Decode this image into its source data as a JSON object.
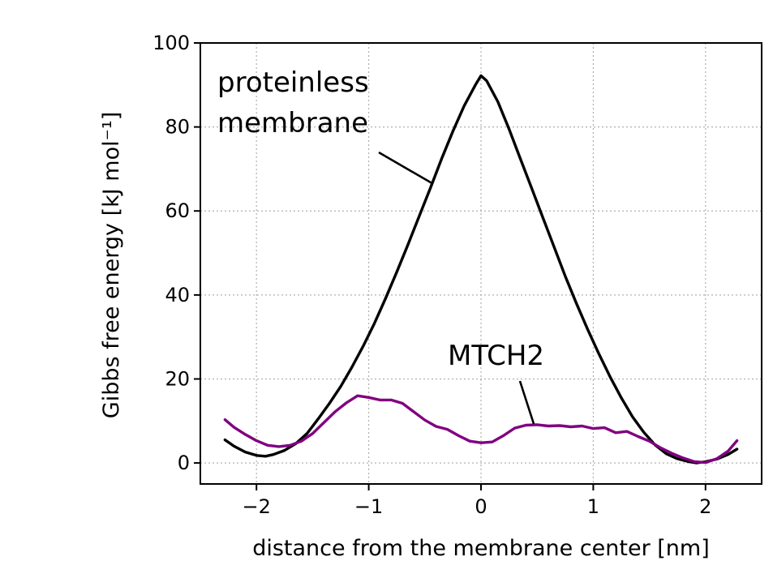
{
  "chart_data": {
    "type": "line",
    "xlabel": "distance from the membrane center [nm]",
    "ylabel": "Gibbs free energy [kJ mol⁻¹]",
    "xlim": [
      -2.5,
      2.5
    ],
    "ylim": [
      -5,
      100
    ],
    "xticks": [
      -2,
      -1,
      0,
      1,
      2
    ],
    "xtick_labels": [
      "−2",
      "−1",
      "0",
      "1",
      "2"
    ],
    "yticks": [
      0,
      20,
      40,
      60,
      80,
      100
    ],
    "ytick_labels": [
      "0",
      "20",
      "40",
      "60",
      "80",
      "100"
    ],
    "grid": true,
    "series": [
      {
        "name": "proteinless membrane",
        "color": "#000000",
        "x": [
          -2.28,
          -2.2,
          -2.1,
          -2.0,
          -1.92,
          -1.85,
          -1.75,
          -1.65,
          -1.55,
          -1.45,
          -1.35,
          -1.25,
          -1.15,
          -1.05,
          -0.95,
          -0.85,
          -0.75,
          -0.65,
          -0.55,
          -0.45,
          -0.35,
          -0.25,
          -0.15,
          -0.05,
          0.0,
          0.05,
          0.15,
          0.25,
          0.35,
          0.45,
          0.55,
          0.65,
          0.75,
          0.85,
          0.95,
          1.05,
          1.15,
          1.25,
          1.35,
          1.45,
          1.55,
          1.65,
          1.75,
          1.85,
          1.92,
          2.0,
          2.1,
          2.2,
          2.28
        ],
        "y": [
          5.5,
          4.0,
          2.6,
          1.8,
          1.6,
          2.0,
          3.0,
          4.6,
          7.0,
          10.5,
          14.2,
          18.2,
          22.8,
          27.8,
          33.2,
          39.2,
          45.5,
          52.0,
          58.8,
          65.5,
          72.5,
          79.0,
          85.0,
          90.0,
          92.2,
          91.0,
          86.0,
          79.5,
          72.5,
          65.5,
          58.5,
          51.5,
          44.5,
          38.0,
          31.8,
          26.0,
          20.5,
          15.5,
          11.0,
          7.3,
          4.3,
          2.2,
          1.0,
          0.3,
          0.0,
          0.3,
          0.9,
          2.0,
          3.3
        ]
      },
      {
        "name": "MTCH2",
        "color": "#800080",
        "x": [
          -2.28,
          -2.2,
          -2.1,
          -2.0,
          -1.9,
          -1.8,
          -1.7,
          -1.6,
          -1.5,
          -1.4,
          -1.3,
          -1.2,
          -1.1,
          -1.0,
          -0.9,
          -0.8,
          -0.7,
          -0.6,
          -0.5,
          -0.4,
          -0.3,
          -0.2,
          -0.1,
          0.0,
          0.1,
          0.2,
          0.3,
          0.4,
          0.5,
          0.6,
          0.7,
          0.8,
          0.9,
          1.0,
          1.1,
          1.2,
          1.3,
          1.4,
          1.5,
          1.6,
          1.7,
          1.8,
          1.9,
          2.0,
          2.1,
          2.2,
          2.28
        ],
        "y": [
          10.3,
          8.5,
          6.8,
          5.3,
          4.2,
          3.9,
          4.2,
          5.2,
          7.0,
          9.6,
          12.2,
          14.3,
          16.0,
          15.6,
          15.0,
          15.0,
          14.2,
          12.2,
          10.2,
          8.7,
          8.0,
          6.5,
          5.2,
          4.8,
          5.0,
          6.5,
          8.3,
          9.0,
          9.1,
          8.8,
          8.9,
          8.6,
          8.8,
          8.2,
          8.4,
          7.2,
          7.5,
          6.3,
          5.2,
          3.6,
          2.3,
          1.2,
          0.3,
          0.1,
          1.0,
          2.8,
          5.3
        ]
      }
    ],
    "annotations": [
      {
        "lines": [
          "proteinless",
          "membrane"
        ]
      },
      {
        "lines": [
          "MTCH2"
        ]
      }
    ]
  }
}
